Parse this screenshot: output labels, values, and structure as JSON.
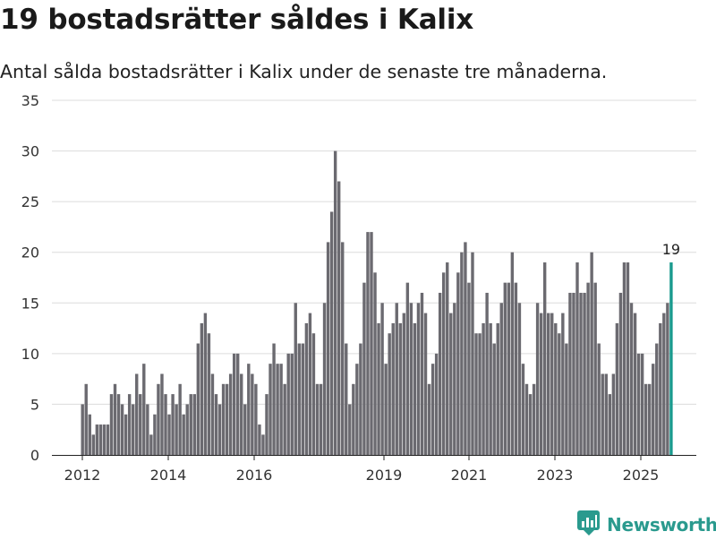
{
  "header": {
    "title": "19 bostadsrätter såldes i Kalix",
    "subtitle": "Antal sålda bostadsrätter i Kalix under de senaste tre månaderna."
  },
  "brand": {
    "name": "Newsworthy",
    "icon": "newsworthy-logo-icon",
    "color": "#2a9a8e"
  },
  "chart_data": {
    "type": "bar",
    "title": "19 bostadsrätter såldes i Kalix",
    "subtitle": "Antal sålda bostadsrätter i Kalix under de senaste tre månaderna.",
    "xlabel": "",
    "ylabel": "",
    "ylim": [
      0,
      35
    ],
    "yticks": [
      0,
      5,
      10,
      15,
      20,
      25,
      30,
      35
    ],
    "xticks": [
      "2012",
      "2014",
      "2016",
      "2019",
      "2021",
      "2023",
      "2025"
    ],
    "grid": true,
    "bar_color": "#6b6a70",
    "highlight_color": "#1a9a8e",
    "highlight_label": "19",
    "values": [
      5,
      7,
      4,
      2,
      3,
      3,
      3,
      3,
      6,
      7,
      6,
      5,
      4,
      6,
      5,
      8,
      6,
      9,
      5,
      2,
      4,
      7,
      8,
      6,
      4,
      6,
      5,
      7,
      4,
      5,
      6,
      6,
      11,
      13,
      14,
      12,
      8,
      6,
      5,
      7,
      7,
      8,
      10,
      10,
      8,
      5,
      9,
      8,
      7,
      3,
      2,
      6,
      9,
      11,
      9,
      9,
      7,
      10,
      10,
      15,
      11,
      11,
      13,
      14,
      12,
      7,
      7,
      15,
      21,
      24,
      30,
      27,
      21,
      11,
      5,
      7,
      9,
      11,
      17,
      22,
      22,
      18,
      13,
      15,
      9,
      12,
      13,
      15,
      13,
      14,
      17,
      15,
      13,
      15,
      16,
      14,
      7,
      9,
      10,
      16,
      18,
      19,
      14,
      15,
      18,
      20,
      21,
      17,
      20,
      12,
      12,
      13,
      16,
      13,
      11,
      13,
      15,
      17,
      17,
      20,
      17,
      15,
      9,
      7,
      6,
      7,
      15,
      14,
      19,
      14,
      14,
      13,
      12,
      14,
      11,
      16,
      16,
      19,
      16,
      16,
      17,
      20,
      17,
      11,
      8,
      8,
      6,
      8,
      13,
      16,
      19,
      19,
      15,
      14,
      10,
      10,
      7,
      7,
      9,
      11,
      13,
      14,
      15,
      19
    ]
  }
}
